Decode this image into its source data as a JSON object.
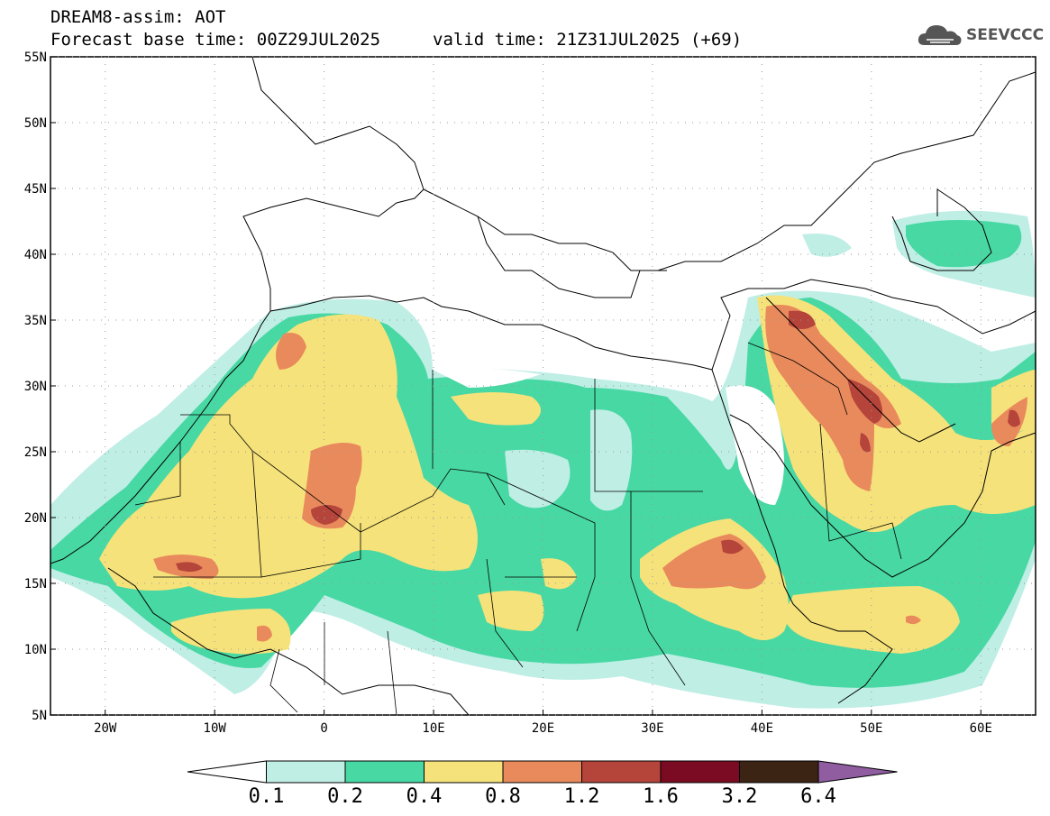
{
  "header": {
    "title": "DREAM8-assim: AOT",
    "base_time": "Forecast base time: 00Z29JUL2025",
    "valid_time": "valid time: 21Z31JUL2025 (+69)"
  },
  "logo": {
    "text": "SEEVCCC",
    "icon": "cloud-icon"
  },
  "map": {
    "region": "North Africa / Middle East / Mediterranean",
    "lon_range": [
      -25,
      65
    ],
    "lat_range": [
      5,
      55
    ],
    "lat_ticks": [
      "55N",
      "50N",
      "45N",
      "40N",
      "35N",
      "30N",
      "25N",
      "20N",
      "15N",
      "10N",
      "5N"
    ],
    "lon_ticks": [
      "20W",
      "10W",
      "0",
      "10E",
      "20E",
      "30E",
      "40E",
      "50E",
      "60E"
    ]
  },
  "colorbar": {
    "levels": [
      "0.1",
      "0.2",
      "0.4",
      "0.8",
      "1.2",
      "1.6",
      "3.2",
      "6.4"
    ],
    "colors": [
      "#ffffff",
      "#bfeee5",
      "#48d8a4",
      "#f6e27a",
      "#e98a5c",
      "#b5443a",
      "#7a0b22",
      "#3b2414",
      "#8f5da0"
    ]
  },
  "aot_colors": {
    "c01": "#bfeee5",
    "c02": "#48d8a4",
    "c04": "#f6e27a",
    "c08": "#e98a5c",
    "c12": "#b5443a",
    "c16": "#7a0b22"
  }
}
